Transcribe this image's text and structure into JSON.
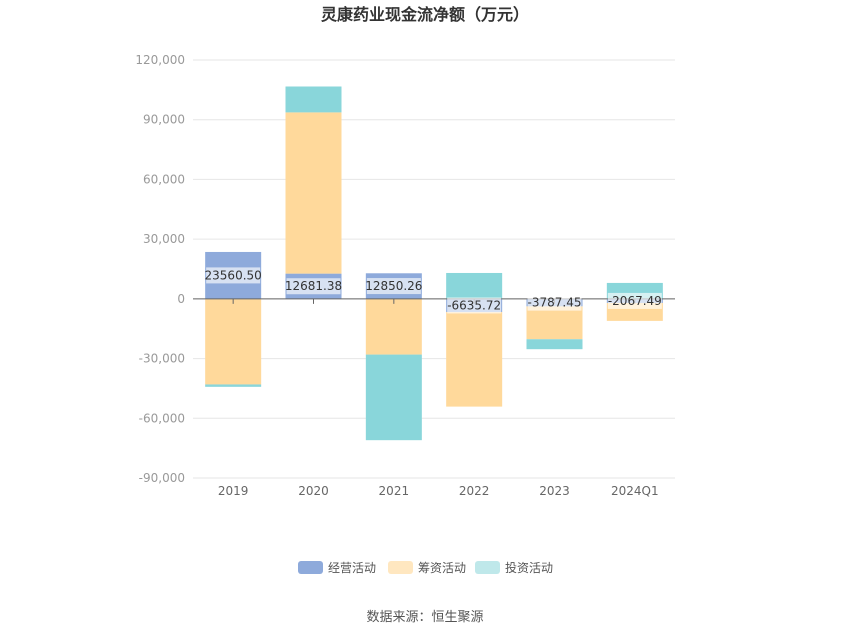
{
  "chart_data": {
    "type": "bar",
    "stacked": true,
    "title": "灵康药业现金流净额（万元）",
    "categories": [
      "2019",
      "2020",
      "2021",
      "2022",
      "2023",
      "2024Q1"
    ],
    "ylim": [
      -90000,
      120000
    ],
    "yticks": [
      120000,
      90000,
      60000,
      30000,
      0,
      -30000,
      -60000,
      -90000
    ],
    "ytick_labels": [
      "120,000",
      "90,000",
      "60,000",
      "30,000",
      "0",
      "-30,000",
      "-60,000",
      "-90,000"
    ],
    "grid": true,
    "legend_position": "bottom-center",
    "series": [
      {
        "name": "经营活动",
        "color": "#8eaadb",
        "values": [
          23560.5,
          12681.38,
          12850.26,
          -6635.72,
          -3787.45,
          -2067.49
        ]
      },
      {
        "name": "筹资活动",
        "color": "#ffd99b",
        "values": [
          -43000,
          81000,
          -28000,
          -47500,
          -16500,
          -9000
        ]
      },
      {
        "name": "投资活动",
        "color": "#89d6da",
        "values": [
          -1200,
          13000,
          -43000,
          13000,
          -5000,
          8000
        ]
      }
    ],
    "data_labels": [
      "23560.50",
      "12681.38",
      "12850.26",
      "-6635.72",
      "-3787.45",
      "-2067.49"
    ],
    "source": "数据来源：恒生聚源"
  }
}
